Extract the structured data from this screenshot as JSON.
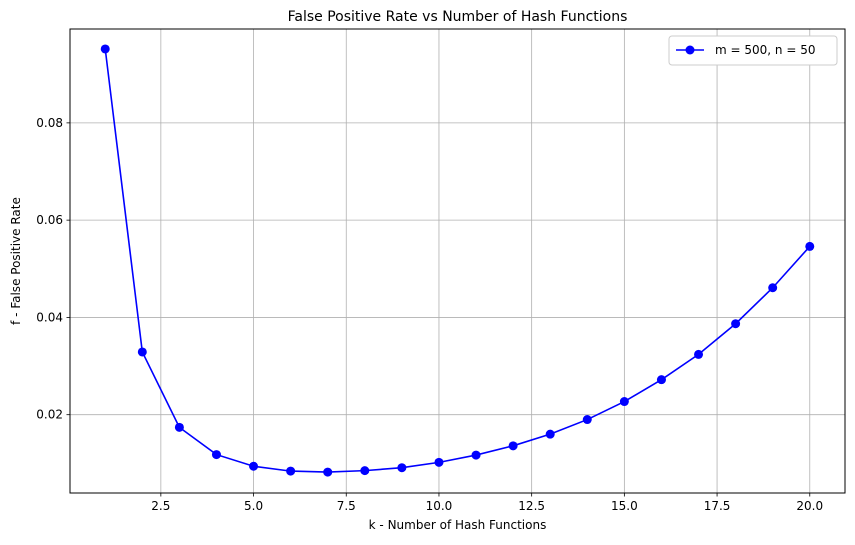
{
  "chart_data": {
    "type": "line",
    "title": "False Positive Rate vs Number of Hash Functions",
    "xlabel": "k - Number of Hash Functions",
    "ylabel": "f - False Positive Rate",
    "xlim": [
      0.05,
      20.95
    ],
    "ylim": [
      0.0039,
      0.0993
    ],
    "xticks": [
      2.5,
      5.0,
      7.5,
      10.0,
      12.5,
      15.0,
      17.5,
      20.0
    ],
    "xtick_labels": [
      "2.5",
      "5.0",
      "7.5",
      "10.0",
      "12.5",
      "15.0",
      "17.5",
      "20.0"
    ],
    "yticks": [
      0.02,
      0.04,
      0.06,
      0.08
    ],
    "ytick_labels": [
      "0.02",
      "0.04",
      "0.06",
      "0.08"
    ],
    "grid": true,
    "legend_position": "top-right",
    "series": [
      {
        "name": "m = 500, n = 50",
        "color": "#0000ff",
        "marker": "circle",
        "x": [
          1,
          2,
          3,
          4,
          5,
          6,
          7,
          8,
          9,
          10,
          11,
          12,
          13,
          14,
          15,
          16,
          17,
          18,
          19,
          20
        ],
        "y": [
          0.0952,
          0.0329,
          0.0174,
          0.0118,
          0.0094,
          0.0084,
          0.0082,
          0.0085,
          0.0091,
          0.0102,
          0.0117,
          0.0136,
          0.016,
          0.019,
          0.0227,
          0.0272,
          0.0324,
          0.0387,
          0.0461,
          0.0546
        ]
      }
    ]
  }
}
